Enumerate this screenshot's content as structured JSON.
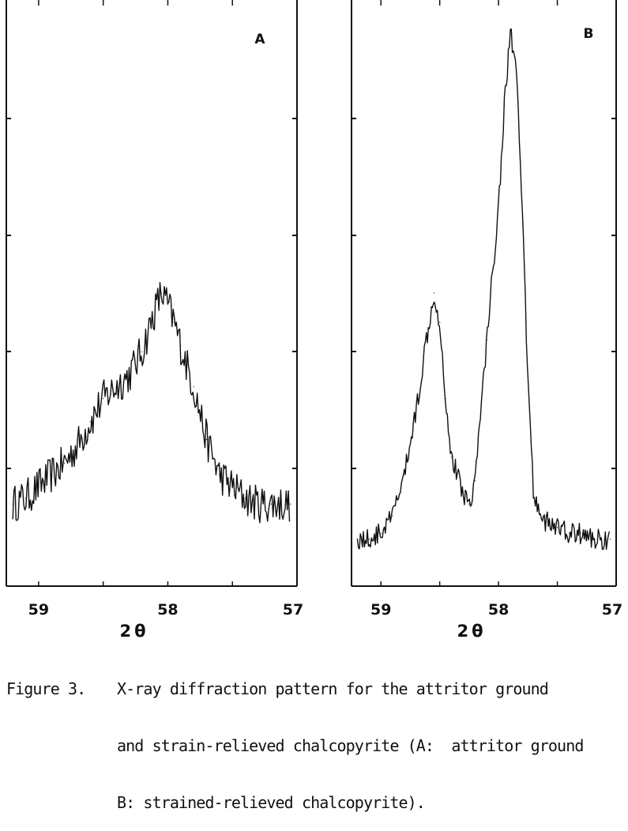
{
  "chart_data": [
    {
      "type": "line",
      "panel_label": "A",
      "xlabel": "2θ",
      "ylabel": "",
      "x_ticks": [
        59,
        58,
        57
      ],
      "xlim": [
        59.25,
        57.0
      ],
      "ylim": [
        0,
        100
      ],
      "grid": false,
      "series": [
        {
          "x": [
            59.2,
            59.1,
            59.0,
            58.9,
            58.8,
            58.7,
            58.6,
            58.5,
            58.4,
            58.3,
            58.2,
            58.1,
            58.05,
            58.0,
            57.95,
            57.9,
            57.8,
            57.7,
            57.6,
            57.5,
            57.4,
            57.3,
            57.2,
            57.05
          ],
          "y": [
            14,
            15,
            17,
            19,
            21,
            24,
            28,
            32,
            34,
            36,
            40,
            47,
            50,
            48,
            45,
            41,
            34,
            25,
            19,
            17,
            15,
            14,
            14,
            14
          ]
        }
      ]
    },
    {
      "type": "line",
      "panel_label": "B",
      "xlabel": "2θ",
      "ylabel": "",
      "x_ticks": [
        59,
        58,
        57
      ],
      "xlim": [
        59.25,
        57.0
      ],
      "ylim": [
        0,
        100
      ],
      "grid": false,
      "series": [
        {
          "x": [
            59.2,
            59.1,
            59.0,
            58.9,
            58.8,
            58.7,
            58.6,
            58.55,
            58.5,
            58.45,
            58.4,
            58.3,
            58.25,
            58.2,
            58.1,
            58.0,
            57.95,
            57.9,
            57.85,
            57.8,
            57.75,
            57.7,
            57.6,
            57.5,
            57.4,
            57.3,
            57.2,
            57.1,
            57.05
          ],
          "y": [
            8,
            8,
            9,
            12,
            19,
            30,
            44,
            50,
            45,
            32,
            22,
            16,
            14,
            18,
            42,
            65,
            82,
            95,
            88,
            65,
            35,
            15,
            11,
            10,
            9,
            9,
            8,
            8,
            8
          ]
        }
      ]
    }
  ],
  "caption": {
    "label": "Figure 3.",
    "lines": [
      "X-ray diffraction pattern for the attritor ground",
      "and strain-relieved chalcopyrite (A:  attritor ground",
      "B: strained-relieved chalcopyrite)."
    ]
  },
  "colors": {
    "ink": "#111111",
    "paper": "#ffffff"
  }
}
